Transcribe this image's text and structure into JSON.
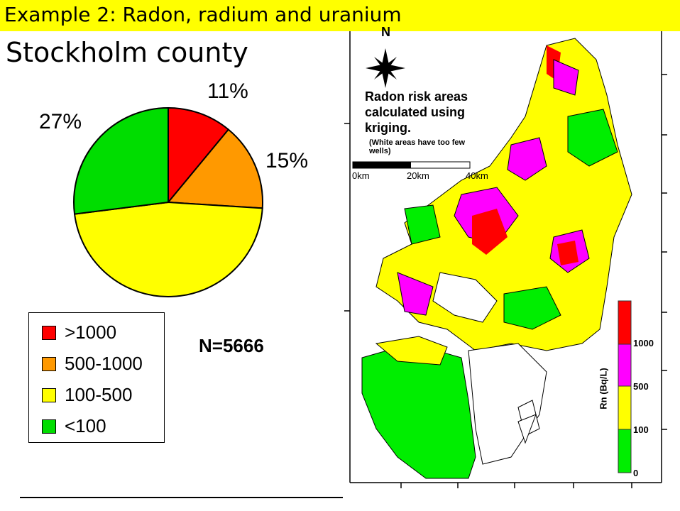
{
  "header": {
    "title": "Example 2: Radon, radium and uranium",
    "subtitle": "Stockholm county"
  },
  "chart_data": {
    "type": "pie",
    "title": "Stockholm county",
    "categories": [
      ">1000",
      "500-1000",
      "100-500",
      "<100"
    ],
    "values": [
      11,
      15,
      47,
      27
    ],
    "labels": [
      "11%",
      "15%",
      "",
      "27%"
    ],
    "colors": [
      "#ff0000",
      "#ff9900",
      "#ffff00",
      "#00dd00"
    ],
    "legend_position": "bottom-left",
    "annotation": "N=5666"
  },
  "legend": {
    "items": [
      {
        "label": ">1000",
        "color": "#ff0000"
      },
      {
        "label": "500-1000",
        "color": "#ff9900"
      },
      {
        "label": "100-500",
        "color": "#ffff00"
      },
      {
        "label": "<100",
        "color": "#00dd00"
      }
    ]
  },
  "map": {
    "north_label": "N",
    "title": "Radon risk areas calculated using kriging.",
    "note": "(White areas have too few wells)",
    "scale_labels": [
      "0km",
      "20km",
      "40km"
    ],
    "colorbar": {
      "title": "Rn (Bq/L)",
      "ticks": [
        "0",
        "100",
        "500",
        "1000"
      ],
      "colors": [
        "#00ee00",
        "#ffff00",
        "#ff00ff",
        "#ff0000"
      ]
    }
  }
}
